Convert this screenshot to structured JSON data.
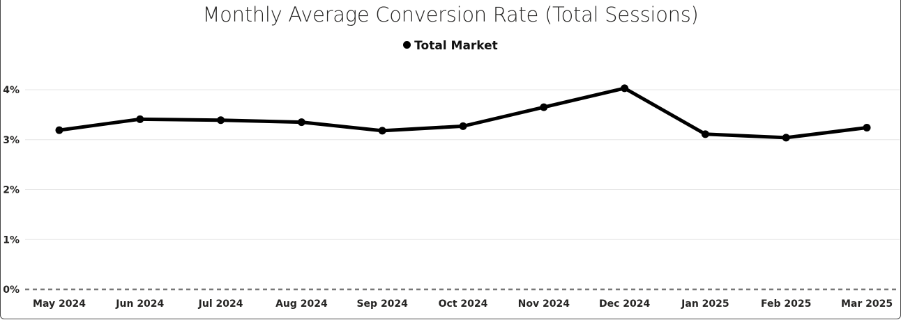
{
  "chart_data": {
    "type": "line",
    "title": "Monthly Average Conversion Rate (Total Sessions)",
    "xlabel": "",
    "ylabel": "",
    "categories": [
      "May 2024",
      "Jun 2024",
      "Jul 2024",
      "Aug 2024",
      "Sep 2024",
      "Oct 2024",
      "Nov 2024",
      "Dec 2024",
      "Jan 2025",
      "Feb 2025",
      "Mar 2025"
    ],
    "series": [
      {
        "name": "Total Market",
        "color": "#000000",
        "values": [
          3.19,
          3.41,
          3.39,
          3.35,
          3.18,
          3.27,
          3.65,
          4.03,
          3.11,
          3.04,
          3.24
        ]
      }
    ],
    "ylim": [
      0,
      4
    ],
    "y_ticks": [
      0,
      1,
      2,
      3,
      4
    ],
    "y_tick_labels": [
      "0%",
      "1%",
      "2%",
      "3%",
      "4%"
    ],
    "grid": true,
    "zero_line": "dashed",
    "legend_position": "top-center"
  }
}
